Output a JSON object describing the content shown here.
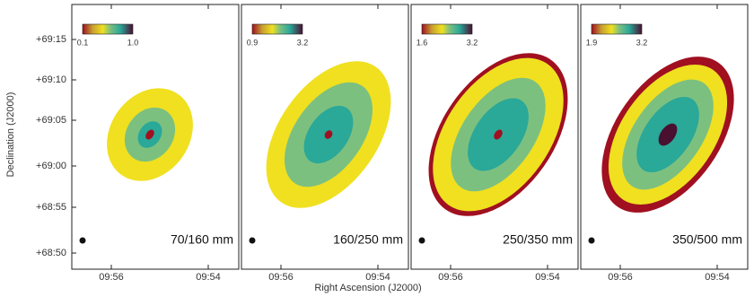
{
  "y_axis": {
    "title": "Declination (J2000)",
    "ticks": [
      "+69:15",
      "+69:10",
      "+69:05",
      "+69:00",
      "+68:55",
      "+68:50"
    ]
  },
  "x_axis": {
    "title": "Right Ascension (J2000)"
  },
  "panels": [
    {
      "label": "70/160 mm",
      "colorbar": {
        "min": "0.1",
        "max": "1.0"
      },
      "x_ticks": [
        "09:56",
        "09:54"
      ]
    },
    {
      "label": "160/250 mm",
      "colorbar": {
        "min": "0.9",
        "max": "3.2"
      },
      "x_ticks": [
        "09:56",
        "09:54"
      ]
    },
    {
      "label": "250/350 mm",
      "colorbar": {
        "min": "1.6",
        "max": "3.2"
      },
      "x_ticks": [
        "09:56",
        "09:54"
      ]
    },
    {
      "label": "350/500 mm",
      "colorbar": {
        "min": "1.9",
        "max": "3.2"
      },
      "x_ticks": [
        "09:56",
        "09:54"
      ]
    }
  ]
}
